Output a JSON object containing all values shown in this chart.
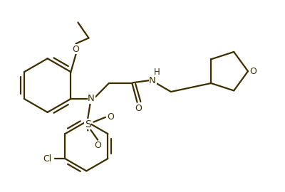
{
  "bg_color": "#ffffff",
  "line_color": "#3d2e00",
  "line_width": 1.6,
  "figsize": [
    4.0,
    2.7
  ],
  "dpi": 100,
  "xlim": [
    0,
    10
  ],
  "ylim": [
    0,
    6.75
  ]
}
